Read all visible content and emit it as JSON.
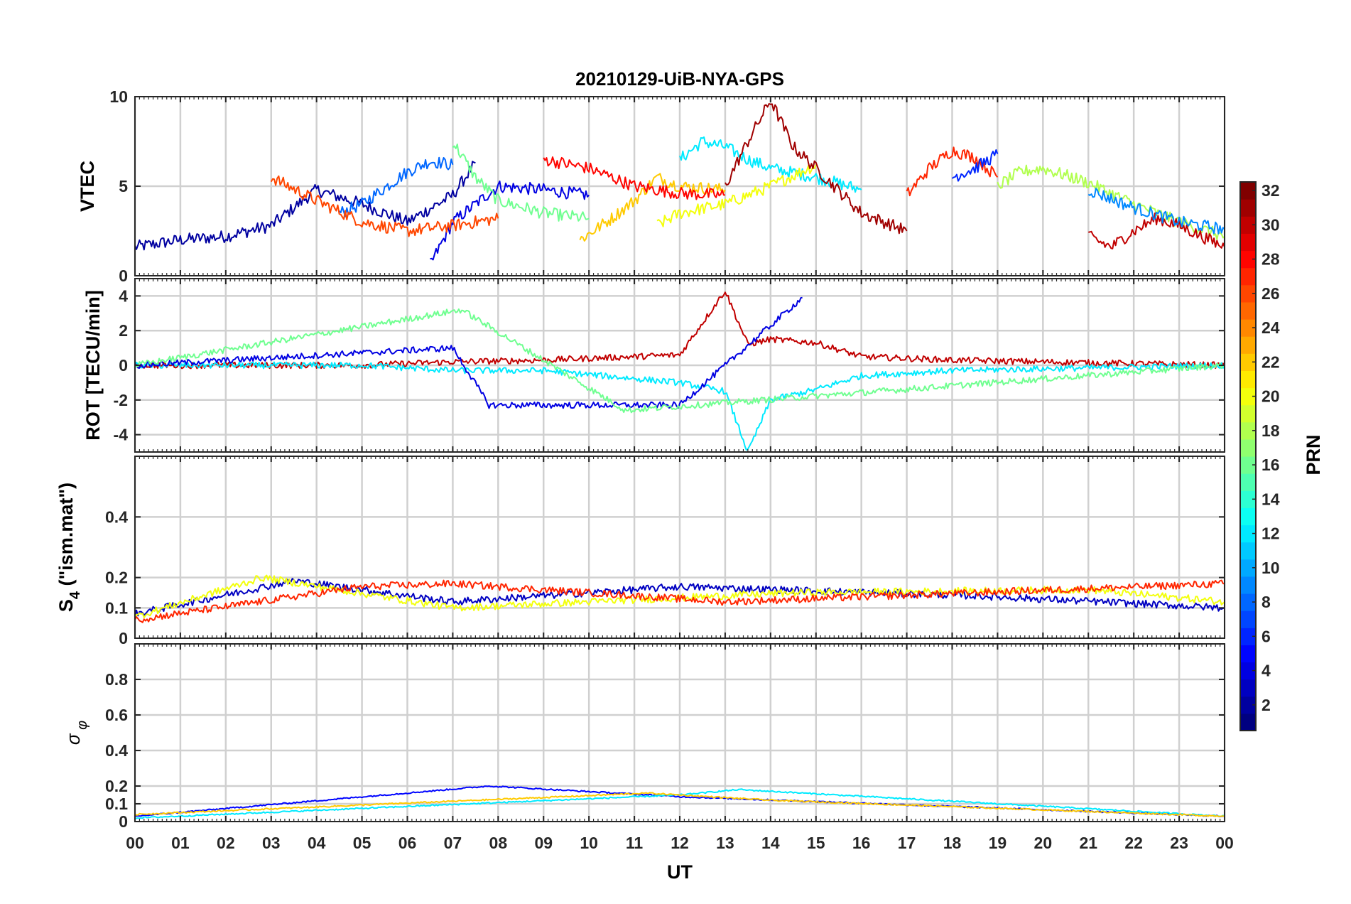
{
  "title": "20210129-UiB-NYA-GPS",
  "xlabel": "UT",
  "colorbar": {
    "label": "PRN",
    "range": [
      1,
      32
    ],
    "ticks": [
      2,
      4,
      6,
      8,
      10,
      12,
      14,
      16,
      18,
      20,
      22,
      24,
      26,
      28,
      30,
      32
    ],
    "colormap": "jet"
  },
  "chart_data": [
    {
      "type": "line",
      "panel": "vtec",
      "ylabel": "VTEC",
      "xlim": [
        0,
        24
      ],
      "ylim": [
        0,
        10
      ],
      "yticks": [
        0,
        5,
        10
      ],
      "xticks": [
        0,
        1,
        2,
        3,
        4,
        5,
        6,
        7,
        8,
        9,
        10,
        11,
        12,
        13,
        14,
        15,
        16,
        17,
        18,
        19,
        20,
        21,
        22,
        23,
        24
      ],
      "xticklabels": [
        "00",
        "01",
        "02",
        "03",
        "04",
        "05",
        "06",
        "07",
        "08",
        "09",
        "10",
        "11",
        "12",
        "13",
        "14",
        "15",
        "16",
        "17",
        "18",
        "19",
        "20",
        "21",
        "22",
        "23",
        "00"
      ],
      "grid": true,
      "series": [
        {
          "prn": 2,
          "x": [
            0,
            1,
            2,
            3,
            4,
            5,
            6,
            7,
            7.5
          ],
          "y": [
            1.6,
            2.0,
            2.2,
            2.8,
            4.8,
            4.0,
            3.0,
            4.5,
            6.3
          ]
        },
        {
          "prn": 4,
          "x": [
            6.5,
            7.0,
            8.0,
            9.0,
            10.0
          ],
          "y": [
            0.6,
            3.0,
            5.0,
            4.8,
            4.5
          ]
        },
        {
          "prn": 8,
          "x": [
            4.5,
            5.0,
            6.0,
            6.5,
            7.0
          ],
          "y": [
            3.5,
            4.0,
            5.8,
            6.4,
            6.2
          ]
        },
        {
          "prn": 12,
          "x": [
            12.0,
            12.5,
            13.0,
            13.5,
            14.0,
            15.0,
            16.0
          ],
          "y": [
            6.5,
            7.5,
            7.2,
            6.5,
            6.0,
            5.5,
            4.8
          ]
        },
        {
          "prn": 16,
          "x": [
            7.0,
            7.5,
            8.0,
            9.0,
            10.0
          ],
          "y": [
            7.5,
            5.5,
            4.2,
            3.5,
            3.2
          ]
        },
        {
          "prn": 20,
          "x": [
            11.5,
            12.0,
            13.0,
            14.0,
            15.0
          ],
          "y": [
            2.8,
            3.5,
            4.0,
            5.0,
            6.2
          ]
        },
        {
          "prn": 22,
          "x": [
            9.8,
            10.5,
            11.0,
            11.5,
            12.0,
            13.0
          ],
          "y": [
            2.0,
            3.2,
            4.2,
            5.5,
            5.0,
            4.8
          ]
        },
        {
          "prn": 26,
          "x": [
            3.0,
            4.0,
            5.0,
            6.0,
            7.0,
            8.0
          ],
          "y": [
            5.5,
            4.2,
            3.0,
            2.5,
            2.8,
            3.2
          ]
        },
        {
          "prn": 28,
          "x": [
            9.0,
            10.0,
            11.0,
            12.0,
            13.0
          ],
          "y": [
            6.5,
            6.0,
            5.0,
            4.6,
            4.5
          ]
        },
        {
          "prn": 31,
          "x": [
            13.0,
            13.5,
            14.0,
            14.5,
            15.0,
            16.0,
            17.0
          ],
          "y": [
            5.0,
            7.5,
            9.8,
            7.2,
            6.0,
            3.5,
            2.5
          ]
        },
        {
          "prn": 27,
          "x": [
            17.0,
            17.5,
            18.0,
            18.5,
            19.0
          ],
          "y": [
            4.5,
            6.0,
            7.0,
            6.6,
            5.5
          ]
        },
        {
          "prn": 6,
          "x": [
            18.0,
            18.5,
            19.0
          ],
          "y": [
            5.5,
            6.0,
            6.8
          ]
        },
        {
          "prn": 18,
          "x": [
            19.0,
            19.5,
            20.0,
            21.0,
            22.0,
            23.0,
            24.0
          ],
          "y": [
            5.0,
            5.8,
            6.0,
            5.2,
            4.0,
            3.0,
            2.2
          ]
        },
        {
          "prn": 30,
          "x": [
            21.0,
            21.5,
            22.0,
            22.5,
            23.0,
            24.0
          ],
          "y": [
            2.2,
            1.6,
            2.5,
            3.2,
            2.8,
            1.6
          ]
        },
        {
          "prn": 9,
          "x": [
            21.0,
            22.0,
            23.0,
            24.0
          ],
          "y": [
            4.8,
            3.8,
            3.0,
            2.6
          ]
        }
      ]
    },
    {
      "type": "line",
      "panel": "rot",
      "ylabel": "ROT [TECU/min]",
      "xlim": [
        0,
        24
      ],
      "ylim": [
        -5,
        5
      ],
      "yticks": [
        -4,
        -2,
        0,
        2,
        4
      ],
      "grid": true,
      "series": [
        {
          "prn": 30,
          "x": [
            0,
            5,
            7,
            9,
            12,
            13,
            13.5,
            14,
            15,
            16,
            18,
            24
          ],
          "y": [
            0,
            0,
            0.2,
            0.3,
            0.6,
            4.3,
            1.2,
            1.5,
            1.3,
            0.5,
            0.3,
            0
          ]
        },
        {
          "prn": 12,
          "x": [
            0,
            5,
            7,
            9,
            12,
            13,
            13.5,
            14,
            15,
            16,
            18,
            24
          ],
          "y": [
            0,
            0,
            -0.3,
            -0.3,
            -1.0,
            -1.5,
            -5.0,
            -2.0,
            -1.4,
            -0.6,
            -0.3,
            0
          ]
        },
        {
          "prn": 4,
          "x": [
            0,
            7,
            7.8,
            12,
            14.7
          ],
          "y": [
            0,
            1.0,
            -2.3,
            -2.3,
            3.9
          ]
        },
        {
          "prn": 16,
          "x": [
            0,
            7.2,
            10.8,
            24
          ],
          "y": [
            0,
            3.2,
            -2.6,
            0
          ]
        }
      ]
    },
    {
      "type": "line",
      "panel": "s4",
      "ylabel": "S4 (\"ism.mat\")",
      "xlim": [
        0,
        24
      ],
      "ylim": [
        0,
        0.6
      ],
      "yticks": [
        0,
        0.1,
        0.2,
        0.4
      ],
      "grid": true,
      "series": [
        {
          "prn": 3,
          "x": [
            0,
            3.5,
            7,
            12,
            18.5,
            24
          ],
          "y": [
            0.08,
            0.19,
            0.12,
            0.17,
            0.14,
            0.1
          ]
        },
        {
          "prn": 20,
          "x": [
            0,
            2.8,
            7,
            14.5,
            21,
            24
          ],
          "y": [
            0.07,
            0.2,
            0.1,
            0.15,
            0.16,
            0.12
          ]
        },
        {
          "prn": 27,
          "x": [
            0,
            5,
            7,
            13,
            24
          ],
          "y": [
            0.06,
            0.17,
            0.18,
            0.12,
            0.18
          ]
        }
      ]
    },
    {
      "type": "line",
      "panel": "sigma_phi",
      "ylabel": "σ φ",
      "xlim": [
        0,
        24
      ],
      "ylim": [
        0,
        1.0
      ],
      "yticks": [
        0,
        0.1,
        0.2,
        0.4,
        0.6,
        0.8
      ],
      "grid": true,
      "series": [
        {
          "prn": 5,
          "x": [
            0,
            7.8,
            12,
            24
          ],
          "y": [
            0.03,
            0.2,
            0.14,
            0.03
          ]
        },
        {
          "prn": 12,
          "x": [
            0,
            12,
            13.3,
            24
          ],
          "y": [
            0.02,
            0.15,
            0.18,
            0.03
          ]
        },
        {
          "prn": 22,
          "x": [
            0,
            11.3,
            14,
            24
          ],
          "y": [
            0.04,
            0.16,
            0.12,
            0.03
          ]
        }
      ]
    }
  ]
}
